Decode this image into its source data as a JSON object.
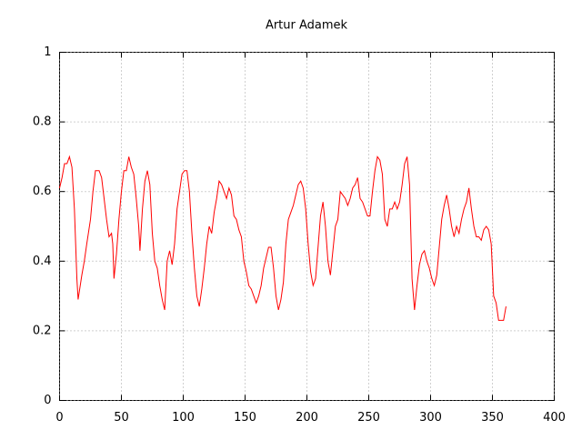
{
  "chart_data": {
    "type": "line",
    "title": "Artur Adamek",
    "x": [
      0,
      2,
      4,
      6,
      8,
      10,
      12,
      14,
      15,
      18,
      20,
      22,
      25,
      27,
      29,
      32,
      34,
      36,
      38,
      40,
      42,
      43,
      44,
      46,
      48,
      50,
      52,
      54,
      56,
      58,
      60,
      62,
      64,
      65,
      67,
      69,
      71,
      73,
      75,
      77,
      79,
      81,
      83,
      85,
      87,
      89,
      91,
      93,
      95,
      97,
      99,
      101,
      103,
      105,
      107,
      109,
      111,
      113,
      115,
      117,
      119,
      121,
      123,
      125,
      127,
      129,
      131,
      133,
      135,
      137,
      139,
      141,
      143,
      145,
      147,
      149,
      151,
      153,
      155,
      157,
      159,
      161,
      163,
      165,
      167,
      169,
      171,
      173,
      175,
      177,
      179,
      181,
      183,
      185,
      187,
      189,
      191,
      193,
      195,
      197,
      199,
      201,
      203,
      205,
      207,
      209,
      211,
      213,
      215,
      217,
      219,
      221,
      223,
      225,
      227,
      229,
      231,
      233,
      235,
      237,
      239,
      241,
      243,
      245,
      247,
      249,
      251,
      253,
      255,
      257,
      259,
      261,
      263,
      265,
      267,
      269,
      271,
      273,
      275,
      277,
      279,
      281,
      283,
      285,
      287,
      289,
      291,
      293,
      295,
      297,
      299,
      301,
      303,
      305,
      307,
      309,
      311,
      313,
      315,
      317,
      319,
      321,
      323,
      325,
      327,
      329,
      331,
      333,
      335,
      337,
      339,
      341,
      343,
      345,
      347,
      349,
      351,
      353,
      355,
      357,
      359,
      361
    ],
    "values": [
      0.61,
      0.64,
      0.68,
      0.68,
      0.7,
      0.67,
      0.55,
      0.35,
      0.29,
      0.36,
      0.4,
      0.45,
      0.52,
      0.6,
      0.66,
      0.66,
      0.64,
      0.58,
      0.52,
      0.47,
      0.48,
      0.45,
      0.35,
      0.42,
      0.52,
      0.6,
      0.66,
      0.66,
      0.7,
      0.67,
      0.65,
      0.58,
      0.5,
      0.43,
      0.55,
      0.63,
      0.66,
      0.62,
      0.48,
      0.4,
      0.38,
      0.33,
      0.29,
      0.26,
      0.4,
      0.43,
      0.39,
      0.45,
      0.55,
      0.6,
      0.65,
      0.66,
      0.66,
      0.6,
      0.48,
      0.38,
      0.3,
      0.27,
      0.32,
      0.38,
      0.45,
      0.5,
      0.48,
      0.54,
      0.58,
      0.63,
      0.62,
      0.6,
      0.58,
      0.61,
      0.59,
      0.53,
      0.52,
      0.49,
      0.47,
      0.4,
      0.37,
      0.33,
      0.32,
      0.3,
      0.28,
      0.3,
      0.33,
      0.38,
      0.41,
      0.44,
      0.44,
      0.38,
      0.3,
      0.26,
      0.29,
      0.34,
      0.45,
      0.52,
      0.54,
      0.56,
      0.59,
      0.62,
      0.63,
      0.61,
      0.55,
      0.45,
      0.37,
      0.33,
      0.35,
      0.44,
      0.53,
      0.57,
      0.5,
      0.4,
      0.36,
      0.43,
      0.5,
      0.52,
      0.6,
      0.59,
      0.58,
      0.56,
      0.58,
      0.61,
      0.62,
      0.64,
      0.58,
      0.57,
      0.55,
      0.53,
      0.53,
      0.6,
      0.66,
      0.7,
      0.69,
      0.65,
      0.52,
      0.5,
      0.55,
      0.55,
      0.57,
      0.55,
      0.57,
      0.62,
      0.68,
      0.7,
      0.62,
      0.35,
      0.26,
      0.33,
      0.39,
      0.42,
      0.43,
      0.4,
      0.38,
      0.35,
      0.33,
      0.36,
      0.44,
      0.52,
      0.56,
      0.59,
      0.55,
      0.5,
      0.47,
      0.5,
      0.48,
      0.52,
      0.55,
      0.57,
      0.61,
      0.55,
      0.5,
      0.47,
      0.47,
      0.46,
      0.49,
      0.5,
      0.49,
      0.45,
      0.3,
      0.28,
      0.23,
      0.23,
      0.23,
      0.27
    ],
    "color": "#ff0000",
    "xlim": [
      0,
      400
    ],
    "xticks": [
      0,
      50,
      100,
      150,
      200,
      250,
      300,
      350,
      400
    ],
    "ylim": [
      0,
      1
    ],
    "yticks": [
      0,
      0.2,
      0.4,
      0.6,
      0.8,
      1
    ],
    "grid": true
  }
}
